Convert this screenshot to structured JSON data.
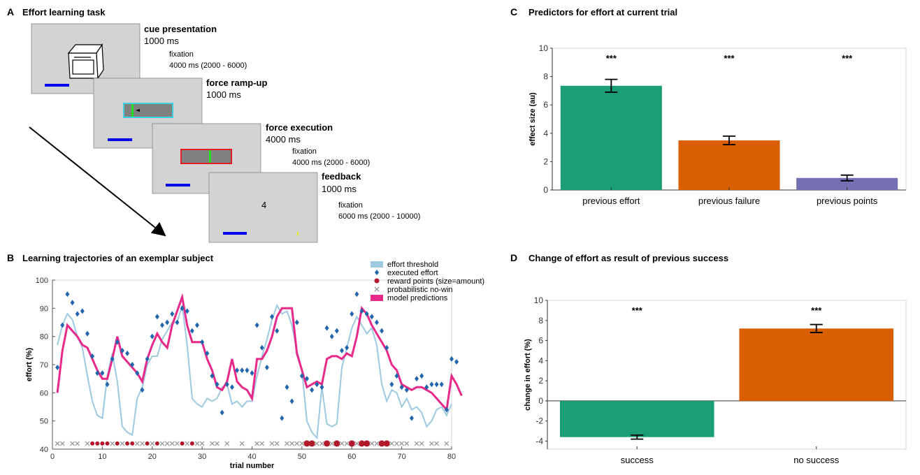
{
  "panelA": {
    "letter": "A",
    "title": "Effort learning task",
    "cue_title": "cue presentation",
    "cue_time": "1000 ms",
    "cue_fix_label": "fixation",
    "cue_fix_time": "4000 ms (2000 - 6000)",
    "ramp_title": "force ramp-up",
    "ramp_time": "1000 ms",
    "exec_title": "force execution",
    "exec_time": "4000 ms",
    "exec_fix_label": "fixation",
    "exec_fix_time": "4000 ms (2000 - 6000)",
    "fb_title": "feedback",
    "fb_time": "1000 ms",
    "fb_fix_label": "fixation",
    "fb_fix_time": "6000 ms (2000 - 10000)",
    "fb_number": "4"
  },
  "panelB": {
    "letter": "B",
    "title": "Learning trajectories of an exemplar subject"
  },
  "panelC": {
    "letter": "C",
    "title": "Predictors for effort at current trial"
  },
  "panelD": {
    "letter": "D",
    "title": "Change of effort as result of previous success"
  },
  "colors": {
    "green": "#1b9e77",
    "orange": "#d95f02",
    "purple": "#7570b3",
    "threshold": "#9ecae1",
    "effort": "#2166ac",
    "reward": "#b2182b",
    "model": "#e7298a",
    "nowin": "#999999"
  },
  "chart_data": [
    {
      "id": "B",
      "type": "line",
      "xlabel": "trial number",
      "ylabel": "effort (%)",
      "xlim": [
        0,
        80
      ],
      "ylim": [
        40,
        100
      ],
      "xticks": [
        0,
        10,
        20,
        30,
        40,
        50,
        60,
        70,
        80
      ],
      "yticks": [
        40,
        50,
        60,
        70,
        80,
        90,
        100
      ],
      "legend": [
        "effort threshold",
        "executed effort",
        "reward points (size=amount)",
        "probabilistic no-win",
        "model predictions"
      ],
      "legend_position": "top-right",
      "threshold": [
        [
          1,
          77
        ],
        [
          2,
          84
        ],
        [
          3,
          88
        ],
        [
          4,
          86
        ],
        [
          5,
          80
        ],
        [
          6,
          76
        ],
        [
          7,
          66
        ],
        [
          8,
          57
        ],
        [
          9,
          52
        ],
        [
          10,
          51
        ],
        [
          11,
          66
        ],
        [
          12,
          74
        ],
        [
          13,
          64
        ],
        [
          14,
          48
        ],
        [
          15,
          46
        ],
        [
          16,
          45
        ],
        [
          17,
          58
        ],
        [
          18,
          62
        ],
        [
          19,
          70
        ],
        [
          20,
          73
        ],
        [
          21,
          73
        ],
        [
          22,
          79
        ],
        [
          23,
          82
        ],
        [
          24,
          85
        ],
        [
          25,
          85
        ],
        [
          26,
          91
        ],
        [
          27,
          77
        ],
        [
          28,
          58
        ],
        [
          29,
          56
        ],
        [
          30,
          55
        ],
        [
          31,
          58
        ],
        [
          32,
          57
        ],
        [
          33,
          58
        ],
        [
          34,
          62
        ],
        [
          35,
          63
        ],
        [
          36,
          56
        ],
        [
          37,
          57
        ],
        [
          38,
          55
        ],
        [
          39,
          57
        ],
        [
          40,
          57
        ],
        [
          41,
          66
        ],
        [
          42,
          73
        ],
        [
          43,
          79
        ],
        [
          44,
          86
        ],
        [
          45,
          91
        ],
        [
          46,
          88
        ],
        [
          47,
          89
        ],
        [
          48,
          84
        ],
        [
          49,
          75
        ],
        [
          50,
          68
        ],
        [
          51,
          50
        ],
        [
          52,
          46
        ],
        [
          53,
          44
        ],
        [
          54,
          62
        ],
        [
          55,
          49
        ],
        [
          56,
          48
        ],
        [
          57,
          49
        ],
        [
          58,
          69
        ],
        [
          59,
          76
        ],
        [
          60,
          83
        ],
        [
          61,
          87
        ],
        [
          62,
          84
        ],
        [
          63,
          81
        ],
        [
          64,
          83
        ],
        [
          65,
          77
        ],
        [
          66,
          63
        ],
        [
          67,
          57
        ],
        [
          68,
          61
        ],
        [
          69,
          60
        ],
        [
          70,
          55
        ],
        [
          71,
          58
        ],
        [
          72,
          54
        ],
        [
          73,
          55
        ],
        [
          74,
          53
        ],
        [
          75,
          48
        ],
        [
          76,
          50
        ],
        [
          77,
          54
        ],
        [
          78,
          55
        ],
        [
          79,
          52
        ],
        [
          80,
          56
        ]
      ],
      "executed": [
        [
          1,
          69
        ],
        [
          2,
          84
        ],
        [
          3,
          95
        ],
        [
          4,
          92
        ],
        [
          5,
          88
        ],
        [
          6,
          89
        ],
        [
          7,
          81
        ],
        [
          8,
          73
        ],
        [
          9,
          67
        ],
        [
          10,
          67
        ],
        [
          11,
          63
        ],
        [
          12,
          72
        ],
        [
          13,
          78
        ],
        [
          14,
          75
        ],
        [
          15,
          74
        ],
        [
          16,
          70
        ],
        [
          17,
          67
        ],
        [
          18,
          61
        ],
        [
          19,
          72
        ],
        [
          20,
          80
        ],
        [
          21,
          87
        ],
        [
          22,
          84
        ],
        [
          23,
          85
        ],
        [
          24,
          88
        ],
        [
          25,
          85
        ],
        [
          26,
          90
        ],
        [
          27,
          89
        ],
        [
          28,
          82
        ],
        [
          29,
          84
        ],
        [
          30,
          78
        ],
        [
          31,
          74
        ],
        [
          32,
          66
        ],
        [
          33,
          63
        ],
        [
          34,
          53
        ],
        [
          35,
          63
        ],
        [
          36,
          62
        ],
        [
          37,
          68
        ],
        [
          38,
          68
        ],
        [
          39,
          68
        ],
        [
          40,
          67
        ],
        [
          41,
          84
        ],
        [
          42,
          76
        ],
        [
          43,
          69
        ],
        [
          44,
          87
        ],
        [
          45,
          82
        ],
        [
          46,
          51
        ],
        [
          47,
          62
        ],
        [
          48,
          57
        ],
        [
          49,
          85
        ],
        [
          50,
          66
        ],
        [
          51,
          65
        ],
        [
          52,
          61
        ],
        [
          53,
          63
        ],
        [
          54,
          62
        ],
        [
          55,
          83
        ],
        [
          56,
          80
        ],
        [
          57,
          82
        ],
        [
          58,
          75
        ],
        [
          59,
          76
        ],
        [
          60,
          88
        ],
        [
          61,
          95
        ],
        [
          62,
          89
        ],
        [
          63,
          88
        ],
        [
          64,
          87
        ],
        [
          65,
          85
        ],
        [
          66,
          82
        ],
        [
          67,
          76
        ],
        [
          68,
          63
        ],
        [
          69,
          66
        ],
        [
          70,
          62
        ],
        [
          71,
          61
        ],
        [
          72,
          51
        ],
        [
          73,
          65
        ],
        [
          74,
          66
        ],
        [
          75,
          62
        ],
        [
          76,
          63
        ],
        [
          77,
          63
        ],
        [
          78,
          63
        ],
        [
          79,
          54
        ],
        [
          80,
          72
        ],
        [
          81,
          71
        ]
      ],
      "model": [
        [
          1,
          60
        ],
        [
          2,
          75
        ],
        [
          3,
          84
        ],
        [
          4,
          82
        ],
        [
          5,
          80
        ],
        [
          6,
          77
        ],
        [
          7,
          76
        ],
        [
          8,
          72
        ],
        [
          9,
          68
        ],
        [
          10,
          65
        ],
        [
          11,
          65
        ],
        [
          12,
          72
        ],
        [
          13,
          80
        ],
        [
          14,
          73
        ],
        [
          15,
          71
        ],
        [
          16,
          69
        ],
        [
          17,
          67
        ],
        [
          18,
          64
        ],
        [
          19,
          72
        ],
        [
          20,
          77
        ],
        [
          21,
          81
        ],
        [
          22,
          78
        ],
        [
          23,
          76
        ],
        [
          24,
          84
        ],
        [
          25,
          89
        ],
        [
          26,
          94
        ],
        [
          27,
          84
        ],
        [
          28,
          78
        ],
        [
          29,
          78
        ],
        [
          30,
          78
        ],
        [
          31,
          72
        ],
        [
          32,
          68
        ],
        [
          33,
          62
        ],
        [
          34,
          61
        ],
        [
          35,
          64
        ],
        [
          36,
          72
        ],
        [
          37,
          64
        ],
        [
          38,
          62
        ],
        [
          39,
          61
        ],
        [
          40,
          58
        ],
        [
          41,
          72
        ],
        [
          42,
          72
        ],
        [
          43,
          75
        ],
        [
          44,
          80
        ],
        [
          45,
          87
        ],
        [
          46,
          90
        ],
        [
          47,
          90
        ],
        [
          48,
          90
        ],
        [
          49,
          74
        ],
        [
          50,
          68
        ],
        [
          51,
          62
        ],
        [
          52,
          63
        ],
        [
          53,
          64
        ],
        [
          54,
          63
        ],
        [
          55,
          72
        ],
        [
          56,
          73
        ],
        [
          57,
          73
        ],
        [
          58,
          72
        ],
        [
          59,
          74
        ],
        [
          60,
          73
        ],
        [
          61,
          80
        ],
        [
          62,
          90
        ],
        [
          63,
          88
        ],
        [
          64,
          84
        ],
        [
          65,
          81
        ],
        [
          66,
          78
        ],
        [
          67,
          75
        ],
        [
          68,
          70
        ],
        [
          69,
          68
        ],
        [
          70,
          63
        ],
        [
          71,
          62
        ],
        [
          72,
          61
        ],
        [
          73,
          62
        ],
        [
          74,
          62
        ],
        [
          75,
          61
        ],
        [
          76,
          60
        ],
        [
          77,
          58
        ],
        [
          78,
          56
        ],
        [
          79,
          54
        ],
        [
          80,
          66
        ],
        [
          81,
          63
        ],
        [
          82,
          59
        ]
      ],
      "reward_trials": [
        [
          8,
          1
        ],
        [
          9,
          1
        ],
        [
          10,
          1
        ],
        [
          11,
          1
        ],
        [
          13,
          1
        ],
        [
          15,
          1
        ],
        [
          16,
          1
        ],
        [
          19,
          1
        ],
        [
          21,
          1
        ],
        [
          26,
          1
        ],
        [
          28,
          1
        ],
        [
          51,
          2
        ],
        [
          52,
          2
        ],
        [
          55,
          2
        ],
        [
          57,
          2
        ],
        [
          60,
          2
        ],
        [
          62,
          2
        ],
        [
          63,
          2
        ],
        [
          66,
          2
        ],
        [
          67,
          2
        ]
      ],
      "nowin_trials": [
        1,
        2,
        4,
        5,
        7,
        12,
        14,
        17,
        18,
        20,
        22,
        23,
        24,
        25,
        27,
        29,
        30,
        32,
        33,
        35,
        38,
        41,
        42,
        44,
        45,
        47,
        48,
        49,
        50,
        53,
        54,
        56,
        58,
        59,
        61,
        64,
        65,
        68,
        69,
        70,
        71,
        73,
        74,
        76,
        77,
        79
      ]
    },
    {
      "id": "C",
      "type": "bar",
      "ylabel": "effect size (au)",
      "ylim": [
        0,
        10
      ],
      "yticks": [
        0,
        2,
        4,
        6,
        8,
        10
      ],
      "categories": [
        "previous effort",
        "previous failure",
        "previous points"
      ],
      "values": [
        7.35,
        3.5,
        0.85
      ],
      "errors": [
        0.45,
        0.3,
        0.2
      ],
      "significance": [
        "***",
        "***",
        "***"
      ]
    },
    {
      "id": "D",
      "type": "bar",
      "ylabel": "change in effort (%)",
      "ylim": [
        -4.8,
        10
      ],
      "yticks": [
        -4,
        -2,
        0,
        2,
        4,
        6,
        8,
        10
      ],
      "categories": [
        "success",
        "no success"
      ],
      "values": [
        -3.6,
        7.2
      ],
      "errors": [
        0.2,
        0.4
      ],
      "significance": [
        "***",
        "***"
      ]
    }
  ]
}
